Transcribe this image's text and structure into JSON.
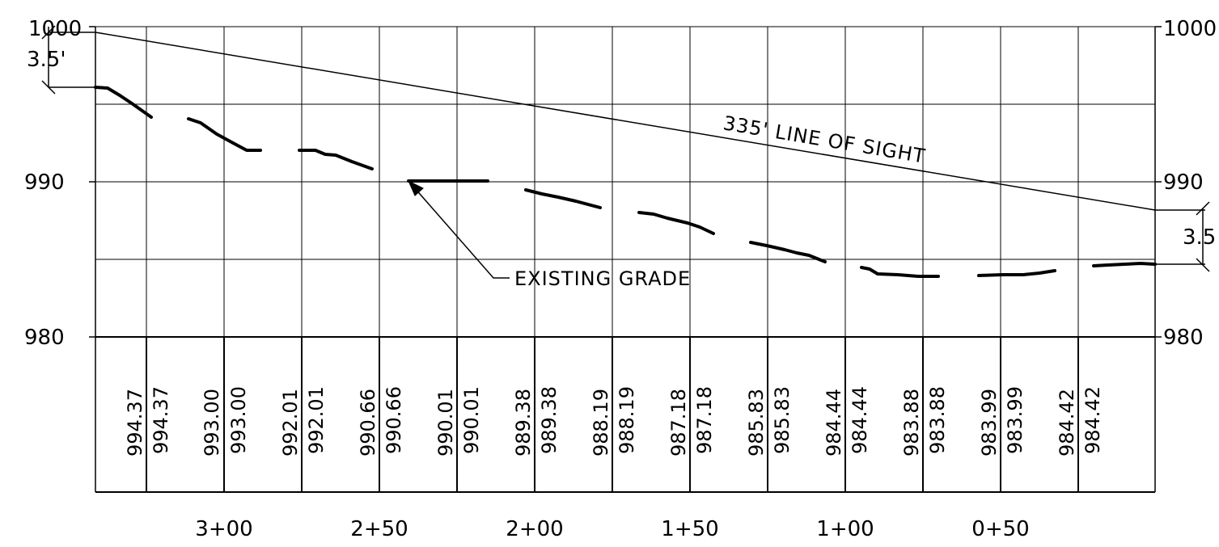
{
  "profile": {
    "left_axis": {
      "ticks": [
        {
          "value": 1000,
          "label": "1000"
        },
        {
          "value": 990,
          "label": "990"
        },
        {
          "value": 980,
          "label": "980"
        }
      ]
    },
    "right_axis": {
      "ticks": [
        {
          "value": 1000,
          "label": "1000"
        },
        {
          "value": 990,
          "label": "990"
        },
        {
          "value": 980,
          "label": "980"
        }
      ]
    },
    "eye_height_left": "3.5'",
    "eye_height_right": "3.5",
    "line_of_sight_label": "335' LINE OF SIGHT",
    "existing_grade_label": "EXISTING GRADE",
    "elevations": [
      "994.37",
      "994.37",
      "993.00",
      "993.00",
      "992.01",
      "992.01",
      "990.66",
      "990.66",
      "990.01",
      "990.01",
      "989.38",
      "989.38",
      "988.19",
      "988.19",
      "987.18",
      "987.18",
      "985.83",
      "985.83",
      "984.44",
      "984.44",
      "983.88",
      "983.88",
      "983.99",
      "983.99",
      "984.42",
      "984.42"
    ],
    "stations": [
      "3+00",
      "2+50",
      "2+00",
      "1+50",
      "1+00",
      "0+50"
    ]
  }
}
